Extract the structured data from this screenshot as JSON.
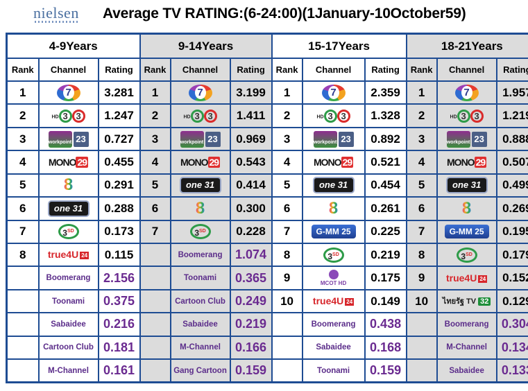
{
  "header": {
    "logo": "nielsen",
    "title": "Average TV RATING:(6-24:00)(1January-10October59)"
  },
  "columns": [
    "Rank",
    "Channel",
    "Rating"
  ],
  "groups": [
    {
      "age": "4-9Years",
      "rows": [
        {
          "rank": "1",
          "channel": "ch7",
          "rating": "3.281"
        },
        {
          "rank": "2",
          "channel": "ch3hd",
          "rating": "1.247"
        },
        {
          "rank": "3",
          "channel": "workpoint",
          "rating": "0.727"
        },
        {
          "rank": "4",
          "channel": "mono",
          "rating": "0.455"
        },
        {
          "rank": "5",
          "channel": "ch8",
          "rating": "0.291"
        },
        {
          "rank": "6",
          "channel": "one",
          "rating": "0.288"
        },
        {
          "rank": "7",
          "channel": "ch3sd",
          "rating": "0.173"
        },
        {
          "rank": "8",
          "channel": "true4u",
          "rating": "0.115"
        },
        {
          "rank": "",
          "channel": "Boomerang",
          "rating": "2.156",
          "pay": true
        },
        {
          "rank": "",
          "channel": "Toonami",
          "rating": "0.375",
          "pay": true
        },
        {
          "rank": "",
          "channel": "Sabaidee",
          "rating": "0.216",
          "pay": true
        },
        {
          "rank": "",
          "channel": "Cartoon Club",
          "rating": "0.181",
          "pay": true
        },
        {
          "rank": "",
          "channel": "M-Channel",
          "rating": "0.161",
          "pay": true
        }
      ]
    },
    {
      "age": "9-14Years",
      "rows": [
        {
          "rank": "1",
          "channel": "ch7",
          "rating": "3.199"
        },
        {
          "rank": "2",
          "channel": "ch3hd",
          "rating": "1.411"
        },
        {
          "rank": "3",
          "channel": "workpoint",
          "rating": "0.969"
        },
        {
          "rank": "4",
          "channel": "mono",
          "rating": "0.543"
        },
        {
          "rank": "5",
          "channel": "one",
          "rating": "0.414"
        },
        {
          "rank": "6",
          "channel": "ch8",
          "rating": "0.300"
        },
        {
          "rank": "7",
          "channel": "ch3sd",
          "rating": "0.228"
        },
        {
          "rank": "",
          "channel": "Boomerang",
          "rating": "1.074",
          "pay": true
        },
        {
          "rank": "",
          "channel": "Toonami",
          "rating": "0.365",
          "pay": true
        },
        {
          "rank": "",
          "channel": "Cartoon Club",
          "rating": "0.249",
          "pay": true
        },
        {
          "rank": "",
          "channel": "Sabaidee",
          "rating": "0.219",
          "pay": true
        },
        {
          "rank": "",
          "channel": "M-Channel",
          "rating": "0.166",
          "pay": true
        },
        {
          "rank": "",
          "channel": "Gang Cartoon",
          "rating": "0.159",
          "pay": true
        }
      ]
    },
    {
      "age": "15-17Years",
      "rows": [
        {
          "rank": "1",
          "channel": "ch7",
          "rating": "2.359"
        },
        {
          "rank": "2",
          "channel": "ch3hd",
          "rating": "1.328"
        },
        {
          "rank": "3",
          "channel": "workpoint",
          "rating": "0.892"
        },
        {
          "rank": "4",
          "channel": "mono",
          "rating": "0.521"
        },
        {
          "rank": "5",
          "channel": "one",
          "rating": "0.454"
        },
        {
          "rank": "6",
          "channel": "ch8",
          "rating": "0.261"
        },
        {
          "rank": "7",
          "channel": "gmm25",
          "rating": "0.225"
        },
        {
          "rank": "8",
          "channel": "ch3sd",
          "rating": "0.219"
        },
        {
          "rank": "9",
          "channel": "mcot",
          "rating": "0.175"
        },
        {
          "rank": "10",
          "channel": "true4u",
          "rating": "0.149"
        },
        {
          "rank": "",
          "channel": "Boomerang",
          "rating": "0.438",
          "pay": true
        },
        {
          "rank": "",
          "channel": "Sabaidee",
          "rating": "0.168",
          "pay": true
        },
        {
          "rank": "",
          "channel": "Toonami",
          "rating": "0.159",
          "pay": true
        }
      ]
    },
    {
      "age": "18-21Years",
      "rows": [
        {
          "rank": "1",
          "channel": "ch7",
          "rating": "1.957"
        },
        {
          "rank": "2",
          "channel": "ch3hd",
          "rating": "1.219"
        },
        {
          "rank": "3",
          "channel": "workpoint",
          "rating": "0.888"
        },
        {
          "rank": "4",
          "channel": "mono",
          "rating": "0.507"
        },
        {
          "rank": "5",
          "channel": "one",
          "rating": "0.499"
        },
        {
          "rank": "6",
          "channel": "ch8",
          "rating": "0.269"
        },
        {
          "rank": "7",
          "channel": "gmm25",
          "rating": "0.195"
        },
        {
          "rank": "8",
          "channel": "ch3sd",
          "rating": "0.179"
        },
        {
          "rank": "9",
          "channel": "true4u",
          "rating": "0.152"
        },
        {
          "rank": "10",
          "channel": "thairath",
          "rating": "0.129"
        },
        {
          "rank": "",
          "channel": "Boomerang",
          "rating": "0.304",
          "pay": true
        },
        {
          "rank": "",
          "channel": "M-Channel",
          "rating": "0.134",
          "pay": true
        },
        {
          "rank": "",
          "channel": "Sabaidee",
          "rating": "0.133",
          "pay": true
        }
      ]
    }
  ],
  "logos": {
    "ch7": {
      "text": "7",
      "sub": ""
    },
    "ch3hd": {
      "text": "3",
      "sub": "HD"
    },
    "workpoint": {
      "text": "workpoint",
      "sub": "23"
    },
    "mono": {
      "text": "MONO",
      "sub": "29"
    },
    "ch8": {
      "text": "8",
      "sub": ""
    },
    "one": {
      "text": "one",
      "sub": "31"
    },
    "ch3sd": {
      "text": "3",
      "sub": "SD"
    },
    "true4u": {
      "text": "true4U",
      "sub": "24"
    },
    "gmm25": {
      "text": "G-MM",
      "sub": "25"
    },
    "mcot": {
      "text": "MCOT HD",
      "sub": ""
    },
    "thairath": {
      "text": "ไทยรัฐ TV",
      "sub": "32"
    }
  }
}
